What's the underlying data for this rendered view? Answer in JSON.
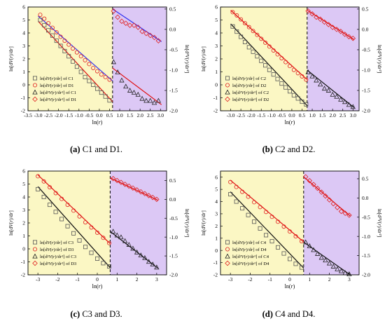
{
  "panels": [
    {
      "id": "a",
      "caption_letter": "(a)",
      "caption_text": "C1 and D1.",
      "xlabel": "ln(r)",
      "ylabel_left": "ln[dV(r)/dr]",
      "ylabel_right": "ln[d²V(r)/dr²]",
      "xlim": [
        -3.5,
        3.3
      ],
      "ylim_left": [
        -2,
        6
      ],
      "ylim_right": [
        -2.0,
        0.55
      ],
      "xticks": [
        -3.5,
        -3.0,
        -2.5,
        -2.0,
        -1.5,
        -1.0,
        -0.5,
        0.0,
        0.5,
        1.0,
        1.5,
        2.0,
        2.5,
        3.0
      ],
      "xtick_labels": [
        "-3.5",
        "-3.0",
        "-2.5",
        "-2.0",
        "-1.5",
        "-1.0",
        "-0.5",
        "0.0",
        "0.5",
        "1.0",
        "1.5",
        "2.0",
        "2.5",
        "3.0"
      ],
      "yticks_left": [
        -2,
        -1,
        0,
        1,
        2,
        3,
        4,
        5,
        6
      ],
      "yticks_right": [
        -2.0,
        -1.5,
        -1.0,
        -0.5,
        0.0,
        0.5
      ],
      "ytick_labels_right": [
        "-2.0",
        "-1.5",
        "-1.0",
        "-0.5",
        "0.0",
        "0.5"
      ],
      "split_x": 0.65,
      "legend": [
        "ln[dV(r)/dr] of C1",
        "ln[dV(r)/dr] of D1",
        "ln[d²V(r)/dr²] of C1",
        "ln[d²V(r)/dr²] of D1"
      ],
      "region_colors": {
        "left": "#fbf7c4",
        "right": "#dcc8f5"
      },
      "fit_colors": [
        "#2e2ef0",
        "#e01010"
      ],
      "series": [
        {
          "marker": "square",
          "color": "#555555",
          "x": [
            -2.9,
            -2.7,
            -2.5,
            -2.3,
            -2.1,
            -1.9,
            -1.7,
            -1.5,
            -1.3,
            -1.1,
            -0.9,
            -0.7,
            -0.5,
            -0.3,
            -0.1,
            0.1,
            0.3,
            0.5
          ],
          "y": [
            5.0,
            4.6,
            4.2,
            3.8,
            3.4,
            3.0,
            2.6,
            2.2,
            1.8,
            1.4,
            1.0,
            0.6,
            0.3,
            0.0,
            -0.3,
            -0.6,
            -0.9,
            -1.2
          ]
        },
        {
          "marker": "circle",
          "color": "#e02020",
          "x": [
            -2.9,
            -2.7,
            -2.5,
            -2.3,
            -2.1,
            -1.9,
            -1.7,
            -1.5,
            -1.3,
            -1.1,
            -0.9,
            -0.7,
            -0.5,
            -0.3,
            -0.1,
            0.1,
            0.3,
            0.5
          ],
          "y": [
            5.4,
            5.1,
            4.75,
            4.4,
            4.05,
            3.7,
            3.4,
            3.1,
            2.8,
            2.5,
            2.2,
            1.9,
            1.6,
            1.3,
            1.05,
            0.8,
            0.6,
            0.4
          ]
        },
        {
          "marker": "triangle",
          "color": "#222222",
          "axis": "right",
          "x": [
            0.7,
            0.9,
            1.1,
            1.3,
            1.5,
            1.7,
            1.9,
            2.1,
            2.3,
            2.5,
            2.7,
            2.9
          ],
          "y": [
            -0.8,
            -1.05,
            -1.25,
            -1.4,
            -1.5,
            -1.55,
            -1.6,
            -1.7,
            -1.75,
            -1.75,
            -1.8,
            -1.75
          ]
        },
        {
          "marker": "diamond",
          "color": "#e02020",
          "axis": "right",
          "x": [
            0.7,
            0.9,
            1.1,
            1.3,
            1.5,
            1.7,
            1.9,
            2.1,
            2.3,
            2.5,
            2.7,
            2.9
          ],
          "y": [
            0.45,
            0.3,
            0.2,
            0.15,
            0.1,
            0.1,
            0.05,
            -0.05,
            -0.1,
            -0.15,
            -0.2,
            -0.28
          ]
        }
      ],
      "fits": [
        {
          "axis": "left",
          "color_index": 0,
          "x": [
            -3.0,
            0.65
          ],
          "y": [
            5.3,
            0.3
          ]
        },
        {
          "axis": "left",
          "color_index": 1,
          "x": [
            -3.0,
            0.65
          ],
          "y": [
            4.9,
            -1.3
          ]
        },
        {
          "axis": "right",
          "color_index": 0,
          "x": [
            0.65,
            3.05
          ],
          "y": [
            0.5,
            -0.3
          ]
        },
        {
          "axis": "right",
          "color_index": 1,
          "x": [
            0.65,
            3.05
          ],
          "y": [
            -0.95,
            -1.85
          ]
        }
      ]
    },
    {
      "id": "b",
      "caption_letter": "(b)",
      "caption_text": "C2 and D2.",
      "xlabel": "ln(r)",
      "ylabel_left": "ln[dV(r)/dr]",
      "ylabel_right": "ln[d²V(r)/dr²]",
      "xlim": [
        -3.5,
        3.3
      ],
      "ylim_left": [
        -2,
        6
      ],
      "ylim_right": [
        -2.0,
        0.55
      ],
      "xticks": [
        -3.0,
        -2.5,
        -2.0,
        -1.5,
        -1.0,
        -0.5,
        0.0,
        0.5,
        1.0,
        1.5,
        2.0,
        2.5,
        3.0
      ],
      "xtick_labels": [
        "-3.0",
        "-2.5",
        "-2.0",
        "-1.5",
        "-1.0",
        "-0.5",
        "0.0",
        "0.5",
        "1.0",
        "1.5",
        "2.0",
        "2.5",
        "3.0"
      ],
      "yticks_left": [
        -2,
        -1,
        0,
        1,
        2,
        3,
        4,
        5,
        6
      ],
      "yticks_right": [
        -2.0,
        -1.5,
        -1.0,
        -0.5,
        0.0,
        0.5
      ],
      "ytick_labels_right": [
        "-2.0",
        "-1.5",
        "-1.0",
        "-0.5",
        "0.0",
        "0.5"
      ],
      "split_x": 0.75,
      "legend": [
        "ln[dV(r)/dr] of C2",
        "ln[dV(r)/dr] of D2",
        "ln[d²V(r)/dr²] of C2",
        "ln[d²V(r)/dr²] of D2"
      ],
      "region_colors": {
        "left": "#fbf7c4",
        "right": "#dcc8f5"
      },
      "fit_colors": [
        "#111111",
        "#e01010"
      ],
      "series": [
        {
          "marker": "square",
          "color": "#555555",
          "x": [
            -2.9,
            -2.7,
            -2.5,
            -2.3,
            -2.1,
            -1.9,
            -1.7,
            -1.5,
            -1.3,
            -1.1,
            -0.9,
            -0.7,
            -0.5,
            -0.3,
            -0.1,
            0.1,
            0.3,
            0.5,
            0.7
          ],
          "y": [
            4.5,
            4.1,
            3.7,
            3.3,
            2.9,
            2.55,
            2.2,
            1.85,
            1.5,
            1.15,
            0.8,
            0.45,
            0.1,
            -0.2,
            -0.5,
            -0.8,
            -1.05,
            -1.3,
            -1.5
          ]
        },
        {
          "marker": "circle",
          "color": "#e02020",
          "x": [
            -2.9,
            -2.7,
            -2.5,
            -2.3,
            -2.1,
            -1.9,
            -1.7,
            -1.5,
            -1.3,
            -1.1,
            -0.9,
            -0.7,
            -0.5,
            -0.3,
            -0.1,
            0.1,
            0.3,
            0.5,
            0.7
          ],
          "y": [
            5.6,
            5.35,
            5.05,
            4.75,
            4.45,
            4.15,
            3.85,
            3.55,
            3.25,
            2.95,
            2.65,
            2.35,
            2.05,
            1.75,
            1.45,
            1.15,
            0.9,
            0.65,
            0.4
          ]
        },
        {
          "marker": "triangle",
          "color": "#222222",
          "axis": "right",
          "x": [
            0.8,
            1.0,
            1.2,
            1.4,
            1.6,
            1.8,
            2.0,
            2.2,
            2.4,
            2.6,
            2.8,
            3.0
          ],
          "y": [
            -1.05,
            -1.15,
            -1.25,
            -1.35,
            -1.45,
            -1.5,
            -1.6,
            -1.65,
            -1.72,
            -1.78,
            -1.85,
            -1.9
          ]
        },
        {
          "marker": "diamond",
          "color": "#e02020",
          "axis": "right",
          "x": [
            0.8,
            1.0,
            1.2,
            1.4,
            1.6,
            1.8,
            2.0,
            2.2,
            2.4,
            2.6,
            2.8,
            3.0
          ],
          "y": [
            0.45,
            0.38,
            0.3,
            0.25,
            0.18,
            0.12,
            0.05,
            0.0,
            -0.05,
            -0.12,
            -0.18,
            -0.22
          ]
        }
      ],
      "fits": [
        {
          "axis": "left",
          "color_index": 0,
          "x": [
            -3.0,
            0.75
          ],
          "y": [
            4.7,
            -1.6
          ]
        },
        {
          "axis": "left",
          "color_index": 1,
          "x": [
            -3.0,
            0.75
          ],
          "y": [
            5.75,
            0.4
          ]
        },
        {
          "axis": "right",
          "color_index": 0,
          "x": [
            0.75,
            3.05
          ],
          "y": [
            -1.0,
            -1.92
          ]
        },
        {
          "axis": "right",
          "color_index": 1,
          "x": [
            0.75,
            3.05
          ],
          "y": [
            0.47,
            -0.25
          ]
        }
      ]
    },
    {
      "id": "c",
      "caption_letter": "(c)",
      "caption_text": "C3 and D3.",
      "xlabel": "ln(r)",
      "ylabel_left": "ln[dV(r)/dr]",
      "ylabel_right": "ln[d²V(r)/dr²]",
      "xlim": [
        -3.5,
        3.5
      ],
      "ylim_left": [
        -2,
        6
      ],
      "ylim_right": [
        -2.0,
        0.75
      ],
      "xticks": [
        -3,
        -2,
        -1,
        0,
        1,
        2,
        3
      ],
      "xtick_labels": [
        "-3",
        "-2",
        "-1",
        "0",
        "1",
        "2",
        "3"
      ],
      "yticks_left": [
        -2,
        -1,
        0,
        1,
        2,
        3,
        4,
        5,
        6
      ],
      "yticks_right": [
        -2.0,
        -1.5,
        -1.0,
        -0.5,
        0.0,
        0.5
      ],
      "ytick_labels_right": [
        "-2.0",
        "-1.5",
        "-1.0",
        "-0.5",
        "0.0",
        "0.5"
      ],
      "split_x": 0.65,
      "legend": [
        "ln[dV(r)/dr] of C3",
        "ln[dV(r)/dr] of D3",
        "ln[d²V(r)/dr²] of C3",
        "ln[d²V(r)/dr²] of D3"
      ],
      "region_colors": {
        "left": "#fbf7c4",
        "right": "#dcc8f5"
      },
      "fit_colors": [
        "#111111",
        "#e01010"
      ],
      "series": [
        {
          "marker": "square",
          "color": "#555555",
          "x": [
            -3.0,
            -2.7,
            -2.4,
            -2.1,
            -1.8,
            -1.5,
            -1.2,
            -0.9,
            -0.6,
            -0.3,
            0.0,
            0.3,
            0.6
          ],
          "y": [
            4.6,
            4.0,
            3.4,
            2.85,
            2.3,
            1.75,
            1.2,
            0.65,
            0.15,
            -0.3,
            -0.75,
            -1.1,
            -1.35
          ]
        },
        {
          "marker": "circle",
          "color": "#e02020",
          "x": [
            -3.0,
            -2.7,
            -2.4,
            -2.1,
            -1.8,
            -1.5,
            -1.2,
            -0.9,
            -0.6,
            -0.3,
            0.0,
            0.3,
            0.6
          ],
          "y": [
            5.6,
            5.2,
            4.75,
            4.3,
            3.85,
            3.4,
            2.95,
            2.5,
            2.05,
            1.65,
            1.25,
            0.85,
            0.45
          ]
        },
        {
          "marker": "triangle",
          "color": "#222222",
          "axis": "right",
          "x": [
            0.8,
            1.0,
            1.2,
            1.4,
            1.6,
            1.8,
            2.0,
            2.2,
            2.4,
            2.6,
            2.8,
            3.0
          ],
          "y": [
            -0.85,
            -0.95,
            -1.0,
            -1.1,
            -1.2,
            -1.3,
            -1.4,
            -1.48,
            -1.55,
            -1.65,
            -1.72,
            -1.8
          ]
        },
        {
          "marker": "diamond",
          "color": "#e02020",
          "axis": "right",
          "x": [
            0.8,
            1.0,
            1.2,
            1.4,
            1.6,
            1.8,
            2.0,
            2.2,
            2.4,
            2.6,
            2.8,
            3.0
          ],
          "y": [
            0.55,
            0.5,
            0.45,
            0.4,
            0.35,
            0.3,
            0.25,
            0.2,
            0.15,
            0.1,
            0.05,
            0.0
          ]
        }
      ],
      "fits": [
        {
          "axis": "left",
          "color_index": 0,
          "x": [
            -3.0,
            0.65
          ],
          "y": [
            4.8,
            -1.45
          ]
        },
        {
          "axis": "left",
          "color_index": 1,
          "x": [
            -3.0,
            0.65
          ],
          "y": [
            5.7,
            0.4
          ]
        },
        {
          "axis": "right",
          "color_index": 0,
          "x": [
            0.65,
            3.05
          ],
          "y": [
            -0.85,
            -1.82
          ]
        },
        {
          "axis": "right",
          "color_index": 1,
          "x": [
            0.65,
            3.05
          ],
          "y": [
            0.57,
            -0.02
          ]
        }
      ]
    },
    {
      "id": "d",
      "caption_letter": "(d)",
      "caption_text": "C4 and D4.",
      "xlabel": "ln(r)",
      "ylabel_left": "ln[dV(r)/dr]",
      "ylabel_right": "ln[d²V(r)/dr²]",
      "xlim": [
        -3.5,
        3.5
      ],
      "ylim_left": [
        -2,
        6.5
      ],
      "ylim_right": [
        -2.0,
        0.7
      ],
      "xticks": [
        -3,
        -2,
        -1,
        0,
        1,
        2,
        3
      ],
      "xtick_labels": [
        "-3",
        "-2",
        "-1",
        "0",
        "1",
        "2",
        "3"
      ],
      "yticks_left": [
        -2,
        -1,
        0,
        1,
        2,
        3,
        4,
        5,
        6
      ],
      "yticks_right": [
        -2.0,
        -1.5,
        -1.0,
        -0.5,
        0.0,
        0.5
      ],
      "ytick_labels_right": [
        "-2.0",
        "-1.5",
        "-1.0",
        "-0.5",
        "0.0",
        "0.5"
      ],
      "split_x": 0.7,
      "legend": [
        "ln[dV(r)/dr] of C4",
        "ln[dV(r)/dr] of D4",
        "ln[d²V(r)/dr²] of C4",
        "ln[d²V(r)/dr²] of D4"
      ],
      "region_colors": {
        "left": "#fbf7c4",
        "right": "#dcc8f5"
      },
      "fit_colors": [
        "#111111",
        "#e01010"
      ],
      "series": [
        {
          "marker": "square",
          "color": "#555555",
          "x": [
            -3.0,
            -2.7,
            -2.4,
            -2.1,
            -1.8,
            -1.5,
            -1.2,
            -0.9,
            -0.6,
            -0.3,
            0.0,
            0.3,
            0.6
          ],
          "y": [
            4.6,
            4.0,
            3.45,
            2.9,
            2.35,
            1.8,
            1.25,
            0.75,
            0.25,
            -0.25,
            -0.7,
            -1.1,
            -1.4
          ]
        },
        {
          "marker": "circle",
          "color": "#e02020",
          "x": [
            -3.0,
            -2.7,
            -2.4,
            -2.1,
            -1.8,
            -1.5,
            -1.2,
            -0.9,
            -0.6,
            -0.3,
            0.0,
            0.3,
            0.6
          ],
          "y": [
            5.6,
            5.2,
            4.8,
            4.4,
            3.95,
            3.55,
            3.15,
            2.75,
            2.35,
            1.95,
            1.55,
            1.15,
            0.75
          ]
        },
        {
          "marker": "triangle",
          "color": "#222222",
          "axis": "right",
          "x": [
            0.8,
            1.0,
            1.2,
            1.4,
            1.6,
            1.8,
            2.0,
            2.2,
            2.4,
            2.6,
            2.8,
            3.0
          ],
          "y": [
            -1.15,
            -1.25,
            -1.35,
            -1.45,
            -1.55,
            -1.62,
            -1.7,
            -1.78,
            -1.85,
            -1.9,
            -1.95,
            -1.98
          ]
        },
        {
          "marker": "diamond",
          "color": "#e02020",
          "axis": "right",
          "x": [
            0.8,
            1.0,
            1.2,
            1.4,
            1.6,
            1.8,
            2.0,
            2.2,
            2.4,
            2.6,
            2.8,
            3.0
          ],
          "y": [
            0.55,
            0.45,
            0.35,
            0.25,
            0.15,
            0.05,
            -0.05,
            -0.15,
            -0.25,
            -0.35,
            -0.4,
            -0.45
          ]
        }
      ],
      "fits": [
        {
          "axis": "left",
          "color_index": 0,
          "x": [
            -3.0,
            0.7
          ],
          "y": [
            4.8,
            -1.45
          ]
        },
        {
          "axis": "left",
          "color_index": 1,
          "x": [
            -3.0,
            0.7
          ],
          "y": [
            5.75,
            0.7
          ]
        },
        {
          "axis": "right",
          "color_index": 0,
          "x": [
            0.7,
            3.05
          ],
          "y": [
            -1.15,
            -2.0
          ]
        },
        {
          "axis": "right",
          "color_index": 1,
          "x": [
            0.7,
            3.05
          ],
          "y": [
            0.55,
            -0.47
          ]
        }
      ]
    }
  ]
}
